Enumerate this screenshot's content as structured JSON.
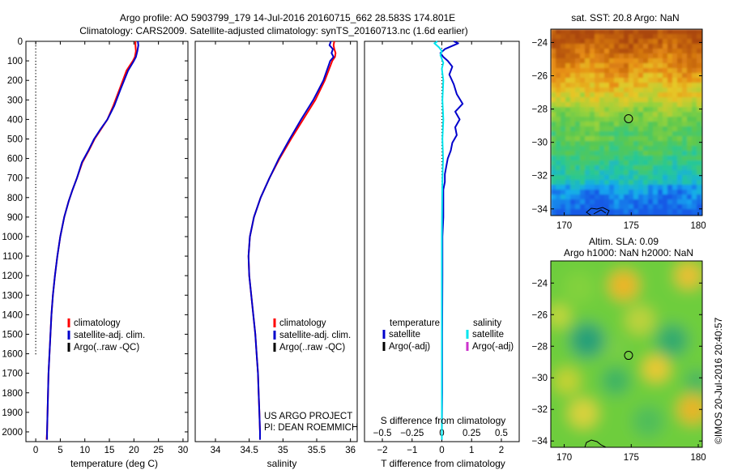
{
  "header": {
    "line1": "Argo profile: AO 5903799_179 14-Jul-2016 20160715_662 28.583S 174.801E",
    "line2": "Climatology: CARS2009. Satellite-adjusted climatology: synTS_20160713.nc (1.6d earlier)"
  },
  "project": {
    "line1": "US ARGO PROJECT",
    "line2": "PI: DEAN ROEMMICH"
  },
  "credit": "©IMOS 20-Jul-2016 20:40:57",
  "colors": {
    "climatology": "#ff0000",
    "satellite": "#0000cc",
    "argo": "#000000",
    "sat_salinity": "#00e5ee",
    "argo_salinity": "#cc33cc"
  },
  "chart_data": [
    {
      "type": "line",
      "xlabel": "temperature (deg C)",
      "ylabel": "",
      "xlim": [
        -2,
        31
      ],
      "ylim": [
        2050,
        0
      ],
      "xticks": [
        0,
        5,
        10,
        15,
        20,
        25,
        30
      ],
      "yticks": [
        0,
        100,
        200,
        300,
        400,
        500,
        600,
        700,
        800,
        900,
        1000,
        1100,
        1200,
        1300,
        1400,
        1500,
        1600,
        1700,
        1800,
        1900,
        2000
      ],
      "legend": [
        "climatology",
        "satellite-adj. clim.",
        "Argo(..raw -QC)"
      ],
      "legend_position": "bottom-center",
      "argo_depth_marks": {
        "x": 0,
        "from": 5,
        "to": 1610
      },
      "series": [
        {
          "name": "climatology",
          "color": "#ff0000",
          "points": [
            [
              20.3,
              0
            ],
            [
              20.3,
              20
            ],
            [
              20.4,
              50
            ],
            [
              20.2,
              80
            ],
            [
              19.8,
              100
            ],
            [
              18.5,
              150
            ],
            [
              17,
              250
            ],
            [
              15.8,
              330
            ],
            [
              14.6,
              400
            ],
            [
              13.3,
              450
            ],
            [
              12,
              500
            ],
            [
              10.8,
              560
            ],
            [
              9.5,
              620
            ],
            [
              8.4,
              700
            ],
            [
              7.5,
              760
            ],
            [
              6.7,
              820
            ],
            [
              5.8,
              900
            ],
            [
              5,
              1000
            ],
            [
              4.4,
              1100
            ],
            [
              3.9,
              1200
            ],
            [
              3.5,
              1300
            ],
            [
              3.2,
              1400
            ],
            [
              3,
              1500
            ],
            [
              2.8,
              1600
            ],
            [
              2.6,
              1700
            ],
            [
              2.5,
              1800
            ],
            [
              2.4,
              1900
            ],
            [
              2.3,
              2000
            ],
            [
              2.2,
              2040
            ]
          ]
        },
        {
          "name": "satellite-adj. clim.",
          "color": "#0000cc",
          "points": [
            [
              20.8,
              0
            ],
            [
              20.9,
              20
            ],
            [
              20.7,
              50
            ],
            [
              20.4,
              80
            ],
            [
              20,
              100
            ],
            [
              18.8,
              150
            ],
            [
              17.2,
              250
            ],
            [
              16,
              330
            ],
            [
              14.6,
              400
            ],
            [
              13.2,
              450
            ],
            [
              11.9,
              500
            ],
            [
              10.7,
              560
            ],
            [
              9.4,
              620
            ],
            [
              8.4,
              700
            ],
            [
              7.5,
              760
            ],
            [
              6.7,
              820
            ],
            [
              5.8,
              900
            ],
            [
              5,
              1000
            ],
            [
              4.4,
              1100
            ],
            [
              3.9,
              1200
            ],
            [
              3.5,
              1300
            ],
            [
              3.2,
              1400
            ],
            [
              3,
              1500
            ],
            [
              2.8,
              1600
            ],
            [
              2.6,
              1700
            ],
            [
              2.5,
              1800
            ],
            [
              2.4,
              1900
            ],
            [
              2.3,
              2000
            ],
            [
              2.3,
              2040
            ]
          ]
        }
      ]
    },
    {
      "type": "line",
      "xlabel": "salinity",
      "ylabel": "",
      "xlim": [
        33.7,
        36.1
      ],
      "ylim": [
        2050,
        0
      ],
      "xticks": [
        34,
        34.5,
        35,
        35.5,
        36
      ],
      "legend": [
        "climatology",
        "satellite-adj. clim.",
        "Argo(..raw -QC)"
      ],
      "legend_position": "bottom-right",
      "series": [
        {
          "name": "climatology",
          "color": "#ff0000",
          "points": [
            [
              35.76,
              0
            ],
            [
              35.75,
              20
            ],
            [
              35.76,
              40
            ],
            [
              35.78,
              60
            ],
            [
              35.77,
              80
            ],
            [
              35.73,
              100
            ],
            [
              35.62,
              200
            ],
            [
              35.48,
              300
            ],
            [
              35.3,
              400
            ],
            [
              35.12,
              500
            ],
            [
              34.95,
              600
            ],
            [
              34.8,
              700
            ],
            [
              34.67,
              800
            ],
            [
              34.57,
              900
            ],
            [
              34.51,
              1000
            ],
            [
              34.49,
              1100
            ],
            [
              34.5,
              1200
            ],
            [
              34.53,
              1300
            ],
            [
              34.56,
              1400
            ],
            [
              34.59,
              1500
            ],
            [
              34.61,
              1600
            ],
            [
              34.63,
              1700
            ],
            [
              34.64,
              1800
            ],
            [
              34.65,
              1900
            ],
            [
              34.66,
              2000
            ],
            [
              34.66,
              2040
            ]
          ]
        },
        {
          "name": "satellite-adj. clim.",
          "color": "#0000cc",
          "points": [
            [
              35.71,
              0
            ],
            [
              35.69,
              20
            ],
            [
              35.74,
              40
            ],
            [
              35.72,
              60
            ],
            [
              35.75,
              80
            ],
            [
              35.7,
              100
            ],
            [
              35.6,
              200
            ],
            [
              35.45,
              300
            ],
            [
              35.27,
              400
            ],
            [
              35.1,
              500
            ],
            [
              34.94,
              600
            ],
            [
              34.8,
              700
            ],
            [
              34.67,
              800
            ],
            [
              34.57,
              900
            ],
            [
              34.51,
              1000
            ],
            [
              34.49,
              1100
            ],
            [
              34.5,
              1200
            ],
            [
              34.53,
              1300
            ],
            [
              34.56,
              1400
            ],
            [
              34.59,
              1500
            ],
            [
              34.61,
              1600
            ],
            [
              34.63,
              1700
            ],
            [
              34.64,
              1800
            ],
            [
              34.65,
              1900
            ],
            [
              34.66,
              2000
            ],
            [
              34.66,
              2040
            ]
          ]
        }
      ]
    },
    {
      "type": "line",
      "xlabel": "T difference from climatology",
      "xlabel_top": "S difference from climatology",
      "ylabel": "",
      "xlim": [
        -2.6,
        2.6
      ],
      "ylim": [
        2050,
        0
      ],
      "xticks": [
        -2,
        -1,
        0,
        1,
        2
      ],
      "xticks_top": [
        -0.5,
        -0.25,
        0,
        0.25,
        0.5
      ],
      "legend_title_left": "temperature",
      "legend_title_right": "salinity",
      "legend": [
        "satellite",
        "Argo(-adj)",
        "satellite",
        "Argo(-adj)"
      ],
      "legend_position": "bottom",
      "series": [
        {
          "name": "temperature satellite",
          "color": "#0000cc",
          "points": [
            [
              0.4,
              0
            ],
            [
              0.55,
              10
            ],
            [
              0.4,
              20
            ],
            [
              0.25,
              30
            ],
            [
              0.1,
              40
            ],
            [
              -0.05,
              60
            ],
            [
              0.05,
              80
            ],
            [
              0.2,
              100
            ],
            [
              0.35,
              130
            ],
            [
              0.25,
              170
            ],
            [
              0.4,
              220
            ],
            [
              0.5,
              270
            ],
            [
              0.7,
              320
            ],
            [
              0.45,
              360
            ],
            [
              0.6,
              400
            ],
            [
              0.45,
              440
            ],
            [
              0.5,
              480
            ],
            [
              0.35,
              520
            ],
            [
              0.3,
              560
            ],
            [
              0.2,
              600
            ],
            [
              0.15,
              640
            ],
            [
              0.1,
              680
            ],
            [
              0.1,
              720
            ],
            [
              0.05,
              760
            ],
            [
              0.05,
              800
            ],
            [
              0.05,
              900
            ],
            [
              0.02,
              1000
            ],
            [
              0.02,
              1200
            ],
            [
              0.01,
              1500
            ],
            [
              0.01,
              1800
            ],
            [
              0.0,
              2000
            ],
            [
              0.0,
              2040
            ]
          ]
        },
        {
          "name": "salinity satellite",
          "color": "#00e5ee",
          "points": [
            [
              -0.15,
              0
            ],
            [
              -0.25,
              10
            ],
            [
              -0.1,
              30
            ],
            [
              0.0,
              50
            ],
            [
              -0.05,
              70
            ],
            [
              0.0,
              90
            ],
            [
              0.05,
              110
            ],
            [
              0.0,
              140
            ],
            [
              0.05,
              200
            ],
            [
              0.02,
              300
            ],
            [
              0.05,
              400
            ],
            [
              0.02,
              500
            ],
            [
              0.04,
              600
            ],
            [
              0.02,
              700
            ],
            [
              0.01,
              800
            ],
            [
              0.0,
              1000
            ],
            [
              0.0,
              1300
            ],
            [
              0.0,
              1600
            ],
            [
              0.0,
              2040
            ]
          ]
        }
      ]
    },
    {
      "type": "heatmap",
      "title": "sat. SST: 20.8 Argo: NaN",
      "xlim": [
        169,
        180.3
      ],
      "ylim": [
        -34.4,
        -23.2
      ],
      "xticks": [
        170,
        175,
        180
      ],
      "yticks": [
        -24,
        -26,
        -28,
        -30,
        -32,
        -34
      ],
      "marker": {
        "lon": 174.8,
        "lat": -28.58
      }
    },
    {
      "type": "heatmap",
      "title": "Altim. SLA: 0.09",
      "subtitle": "Argo h1000: NaN h2000: NaN",
      "xlim": [
        169,
        180.3
      ],
      "ylim": [
        -34.4,
        -22.6
      ],
      "xticks": [
        170,
        175,
        180
      ],
      "yticks": [
        -24,
        -26,
        -28,
        -30,
        -32,
        -34
      ],
      "marker": {
        "lon": 174.8,
        "lat": -28.58
      }
    }
  ]
}
